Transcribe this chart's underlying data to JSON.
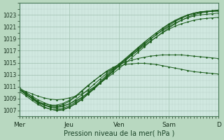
{
  "background_color": "#b8d8c0",
  "plot_bg_color": "#d0e8e0",
  "grid_major_color": "#a0c0b0",
  "grid_minor_color": "#b8d4c8",
  "line_color": "#1a5c1a",
  "marker_color": "#1a5c1a",
  "ylabel_text": "Pression niveau de la mer( hPa )",
  "x_tick_labels": [
    "Mer",
    "Jeu",
    "Ven",
    "Sam",
    "D"
  ],
  "x_tick_positions": [
    0,
    48,
    96,
    144,
    192
  ],
  "ylim": [
    1006,
    1025
  ],
  "yticks": [
    1007,
    1009,
    1011,
    1013,
    1015,
    1017,
    1019,
    1021,
    1023
  ],
  "xlim": [
    0,
    192
  ],
  "figsize": [
    3.2,
    2.0
  ],
  "dpi": 100,
  "series": [
    [
      1010.5,
      1010.2,
      1009.8,
      1009.4,
      1009.1,
      1008.9,
      1008.8,
      1008.9,
      1009.1,
      1009.4,
      1009.8,
      1010.3,
      1010.9,
      1011.6,
      1012.4,
      1013.2,
      1014.0,
      1014.9,
      1015.8,
      1016.7,
      1017.6,
      1018.5,
      1019.3,
      1020.1,
      1020.8,
      1021.5,
      1022.1,
      1022.6,
      1023.0,
      1023.3,
      1023.5,
      1023.6,
      1023.7
    ],
    [
      1010.5,
      1010.0,
      1009.4,
      1008.8,
      1008.3,
      1007.9,
      1007.7,
      1007.8,
      1008.1,
      1008.6,
      1009.2,
      1009.9,
      1010.7,
      1011.6,
      1012.5,
      1013.5,
      1014.4,
      1015.3,
      1016.2,
      1017.1,
      1018.0,
      1018.9,
      1019.7,
      1020.5,
      1021.2,
      1021.9,
      1022.4,
      1022.9,
      1023.3,
      1023.5,
      1023.6,
      1023.7,
      1023.8
    ],
    [
      1010.5,
      1009.8,
      1009.0,
      1008.2,
      1007.6,
      1007.2,
      1007.0,
      1007.1,
      1007.5,
      1008.1,
      1008.8,
      1009.7,
      1010.6,
      1011.6,
      1012.6,
      1013.6,
      1014.6,
      1015.5,
      1016.5,
      1017.4,
      1018.3,
      1019.2,
      1020.0,
      1020.8,
      1021.5,
      1022.1,
      1022.6,
      1023.0,
      1023.3,
      1023.5,
      1023.6,
      1023.7,
      1023.8
    ],
    [
      1010.8,
      1010.1,
      1009.3,
      1008.5,
      1007.9,
      1007.5,
      1007.3,
      1007.4,
      1007.8,
      1008.4,
      1009.1,
      1010.0,
      1010.9,
      1011.9,
      1012.9,
      1013.9,
      1014.8,
      1015.7,
      1016.6,
      1017.5,
      1018.4,
      1019.2,
      1020.0,
      1020.7,
      1021.4,
      1022.0,
      1022.5,
      1022.9,
      1023.2,
      1023.4,
      1023.5,
      1023.6,
      1023.6
    ],
    [
      1010.2,
      1009.5,
      1008.7,
      1008.0,
      1007.5,
      1007.2,
      1007.1,
      1007.2,
      1007.6,
      1008.2,
      1008.9,
      1009.8,
      1010.7,
      1011.7,
      1012.7,
      1013.7,
      1014.6,
      1015.5,
      1016.4,
      1017.3,
      1018.1,
      1018.9,
      1019.7,
      1020.4,
      1021.0,
      1021.6,
      1022.1,
      1022.5,
      1022.8,
      1023.0,
      1023.1,
      1023.2,
      1023.3
    ],
    [
      1010.5,
      1009.8,
      1009.1,
      1008.4,
      1007.9,
      1007.6,
      1007.5,
      1007.7,
      1008.1,
      1008.8,
      1009.6,
      1010.5,
      1011.4,
      1012.3,
      1013.2,
      1014.0,
      1014.8,
      1015.5,
      1016.2,
      1017.0,
      1017.8,
      1018.6,
      1019.3,
      1020.0,
      1020.6,
      1021.1,
      1021.5,
      1021.8,
      1022.1,
      1022.3,
      1022.4,
      1022.5,
      1022.6
    ],
    [
      1010.5,
      1009.7,
      1009.0,
      1008.3,
      1007.9,
      1007.7,
      1007.7,
      1008.0,
      1008.5,
      1009.3,
      1010.2,
      1011.1,
      1012.0,
      1012.8,
      1013.6,
      1014.2,
      1014.7,
      1015.1,
      1015.4,
      1015.7,
      1015.9,
      1016.1,
      1016.2,
      1016.3,
      1016.3,
      1016.3,
      1016.3,
      1016.2,
      1016.1,
      1016.0,
      1015.9,
      1015.8,
      1015.7
    ],
    [
      1010.5,
      1009.8,
      1009.1,
      1008.5,
      1008.1,
      1007.9,
      1007.9,
      1008.2,
      1008.7,
      1009.4,
      1010.3,
      1011.2,
      1012.0,
      1012.8,
      1013.5,
      1014.0,
      1014.4,
      1014.7,
      1014.8,
      1014.9,
      1014.9,
      1014.8,
      1014.7,
      1014.5,
      1014.3,
      1014.1,
      1013.9,
      1013.7,
      1013.5,
      1013.4,
      1013.3,
      1013.2,
      1013.1
    ]
  ]
}
